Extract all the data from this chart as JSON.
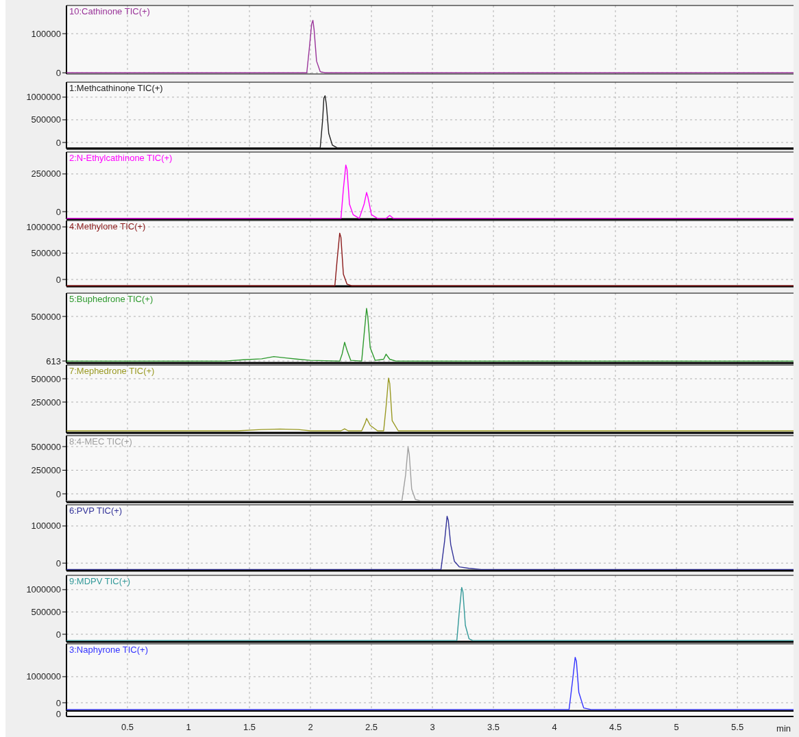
{
  "chart_data": [
    {
      "type": "line",
      "xlim": [
        0,
        5.96
      ],
      "xticks": [
        0.5,
        1,
        1.5,
        2,
        2.5,
        3,
        3.5,
        4,
        4.5,
        5,
        5.5
      ],
      "ylim": [
        -3000,
        172000
      ],
      "yticks": [
        0,
        100000
      ],
      "grid": true,
      "tick_labels": "y",
      "series": [
        {
          "name": "10:Cathinone TIC(+)",
          "color": "#993399",
          "x": [
            0,
            1.97,
            1.99,
            2.01,
            2.02,
            2.03,
            2.05,
            2.08,
            2.12,
            5.96
          ],
          "values": [
            0,
            0,
            60000,
            125000,
            134000,
            110000,
            30000,
            3000,
            0,
            0
          ]
        }
      ]
    },
    {
      "type": "line",
      "xlim": [
        0,
        5.96
      ],
      "xticks": [
        0.5,
        1,
        1.5,
        2,
        2.5,
        3,
        3.5,
        4,
        4.5,
        5,
        5.5
      ],
      "ylim": [
        -136000,
        1330000
      ],
      "yticks": [
        0,
        500000,
        1000000
      ],
      "grid": true,
      "tick_labels": "y",
      "series": [
        {
          "name": "1:Methcathinone TIC(+)",
          "color": "#222222",
          "x": [
            0,
            2.08,
            2.1,
            2.11,
            2.12,
            2.13,
            2.15,
            2.18,
            2.22,
            5.96
          ],
          "values": [
            -120000,
            -120000,
            500000,
            980000,
            1030000,
            850000,
            200000,
            -60000,
            -120000,
            -120000
          ]
        }
      ]
    },
    {
      "type": "line",
      "xlim": [
        0,
        5.96
      ],
      "xticks": [
        0.5,
        1,
        1.5,
        2,
        2.5,
        3,
        3.5,
        4,
        4.5,
        5,
        5.5
      ],
      "ylim": [
        -50000,
        395000
      ],
      "yticks": [
        0,
        250000
      ],
      "grid": true,
      "tick_labels": "y",
      "series": [
        {
          "name": "2:N-Ethylcathinone TIC(+)",
          "color": "#ff00ff",
          "x": [
            0,
            2.25,
            2.27,
            2.29,
            2.3,
            2.32,
            2.35,
            2.4,
            2.44,
            2.46,
            2.47,
            2.5,
            2.55,
            2.62,
            2.65,
            2.68,
            5.96
          ],
          "values": [
            -45000,
            -45000,
            150000,
            309000,
            280000,
            50000,
            -20000,
            -45000,
            50000,
            127000,
            100000,
            -20000,
            -45000,
            -45000,
            -25000,
            -45000,
            -45000
          ]
        }
      ]
    },
    {
      "type": "line",
      "xlim": [
        0,
        5.96
      ],
      "xticks": [
        0.5,
        1,
        1.5,
        2,
        2.5,
        3,
        3.5,
        4,
        4.5,
        5,
        5.5
      ],
      "ylim": [
        -130000,
        1120000
      ],
      "yticks": [
        0,
        500000,
        1000000
      ],
      "grid": true,
      "tick_labels": "y",
      "series": [
        {
          "name": "4:Methylone TIC(+)",
          "color": "#8b1a1a",
          "x": [
            0,
            2.2,
            2.22,
            2.24,
            2.25,
            2.27,
            2.3,
            2.34,
            5.96
          ],
          "values": [
            -120000,
            -120000,
            400000,
            880000,
            800000,
            100000,
            -90000,
            -120000,
            -120000
          ]
        }
      ]
    },
    {
      "type": "line",
      "xlim": [
        0,
        5.96
      ],
      "xticks": [
        0.5,
        1,
        1.5,
        2,
        2.5,
        3,
        3.5,
        4,
        4.5,
        5,
        5.5
      ],
      "ylim": [
        -22000,
        761000
      ],
      "yticks": [
        613,
        500000
      ],
      "grid": true,
      "tick_labels": "y",
      "series": [
        {
          "name": "5:Buphedrone TIC(+)",
          "color": "#2e9a2e",
          "x": [
            0,
            1.3,
            1.45,
            1.6,
            1.7,
            1.8,
            1.9,
            2,
            2.24,
            2.26,
            2.28,
            2.3,
            2.33,
            2.42,
            2.44,
            2.46,
            2.47,
            2.49,
            2.53,
            2.6,
            2.62,
            2.65,
            2.7,
            2.8,
            3,
            5.3,
            5.96
          ],
          "values": [
            0,
            0,
            15000,
            25000,
            50000,
            35000,
            20000,
            8000,
            0,
            80000,
            210000,
            120000,
            8000,
            0,
            300000,
            590000,
            500000,
            150000,
            8000,
            20000,
            77000,
            20000,
            0,
            0,
            0,
            0,
            0
          ]
        }
      ]
    },
    {
      "type": "line",
      "xlim": [
        0,
        5.96
      ],
      "xticks": [
        0.5,
        1,
        1.5,
        2,
        2.5,
        3,
        3.5,
        4,
        4.5,
        5,
        5.5
      ],
      "ylim": [
        -81000,
        647000
      ],
      "yticks": [
        250000,
        500000
      ],
      "grid": true,
      "tick_labels": "y",
      "series": [
        {
          "name": "7:Mephedrone TIC(+)",
          "color": "#999922",
          "x": [
            0,
            1.4,
            1.6,
            1.75,
            1.9,
            2,
            2.25,
            2.28,
            2.31,
            2.42,
            2.45,
            2.46,
            2.49,
            2.55,
            2.6,
            2.62,
            2.64,
            2.65,
            2.67,
            2.72,
            2.8,
            5.96
          ],
          "values": [
            -59000,
            -59000,
            -45000,
            -40000,
            -45000,
            -59000,
            -59000,
            -37000,
            -59000,
            -59000,
            30000,
            74000,
            0,
            -59000,
            -59000,
            200000,
            507000,
            450000,
            50000,
            -59000,
            -59000,
            -59000
          ]
        }
      ]
    },
    {
      "type": "line",
      "xlim": [
        0,
        5.96
      ],
      "xticks": [
        0.5,
        1,
        1.5,
        2,
        2.5,
        3,
        3.5,
        4,
        4.5,
        5,
        5.5
      ],
      "ylim": [
        -87000,
        616000
      ],
      "yticks": [
        0,
        250000,
        500000
      ],
      "grid": true,
      "tick_labels": "y",
      "series": [
        {
          "name": "8:4-MEC TIC(+)",
          "color": "#a0a0a0",
          "x": [
            0,
            2.75,
            2.78,
            2.8,
            2.81,
            2.83,
            2.86,
            2.9,
            5.96
          ],
          "values": [
            -72000,
            -72000,
            200000,
            493000,
            420000,
            50000,
            -60000,
            -72000,
            -72000
          ]
        }
      ]
    },
    {
      "type": "line",
      "xlim": [
        0,
        5.96
      ],
      "xticks": [
        0.5,
        1,
        1.5,
        2,
        2.5,
        3,
        3.5,
        4,
        4.5,
        5,
        5.5
      ],
      "ylim": [
        -20000,
        157000
      ],
      "yticks": [
        0,
        100000
      ],
      "grid": true,
      "tick_labels": "y",
      "series": [
        {
          "name": "6:PVP TIC(+)",
          "color": "#333399",
          "x": [
            0,
            3.07,
            3.1,
            3.12,
            3.13,
            3.15,
            3.18,
            3.22,
            3.3,
            3.4,
            5.96
          ],
          "values": [
            -17000,
            -17000,
            60000,
            126000,
            115000,
            50000,
            5000,
            -10000,
            -14000,
            -17000,
            -17000
          ]
        }
      ]
    },
    {
      "type": "line",
      "xlim": [
        0,
        5.96
      ],
      "xticks": [
        0.5,
        1,
        1.5,
        2,
        2.5,
        3,
        3.5,
        4,
        4.5,
        5,
        5.5
      ],
      "ylim": [
        -169000,
        1320000
      ],
      "yticks": [
        0,
        500000,
        1000000
      ],
      "grid": true,
      "tick_labels": "y",
      "series": [
        {
          "name": "9:MDPV TIC(+)",
          "color": "#339999",
          "x": [
            0,
            3.2,
            3.22,
            3.24,
            3.25,
            3.27,
            3.3,
            3.33,
            5.96
          ],
          "values": [
            -140000,
            -140000,
            500000,
            1050000,
            950000,
            200000,
            -100000,
            -140000,
            -140000
          ]
        }
      ]
    },
    {
      "type": "line",
      "xlim": [
        0,
        5.96
      ],
      "xticks": [
        0.5,
        1,
        1.5,
        2,
        2.5,
        3,
        3.5,
        4,
        4.5,
        5,
        5.5
      ],
      "ylim": [
        -316000,
        2260000
      ],
      "yticks": [
        0,
        1000000
      ],
      "grid": true,
      "xlabel": "min",
      "series": [
        {
          "name": "3:Naphyrone TIC(+)",
          "color": "#3333ff",
          "x": [
            0,
            4.12,
            4.15,
            4.17,
            4.18,
            4.2,
            4.24,
            4.3,
            5.96
          ],
          "values": [
            -260000,
            -260000,
            900000,
            1740000,
            1600000,
            400000,
            -200000,
            -260000,
            -260000
          ]
        }
      ]
    },
    {
      "type": "other",
      "annotations": [
        "0"
      ]
    }
  ]
}
